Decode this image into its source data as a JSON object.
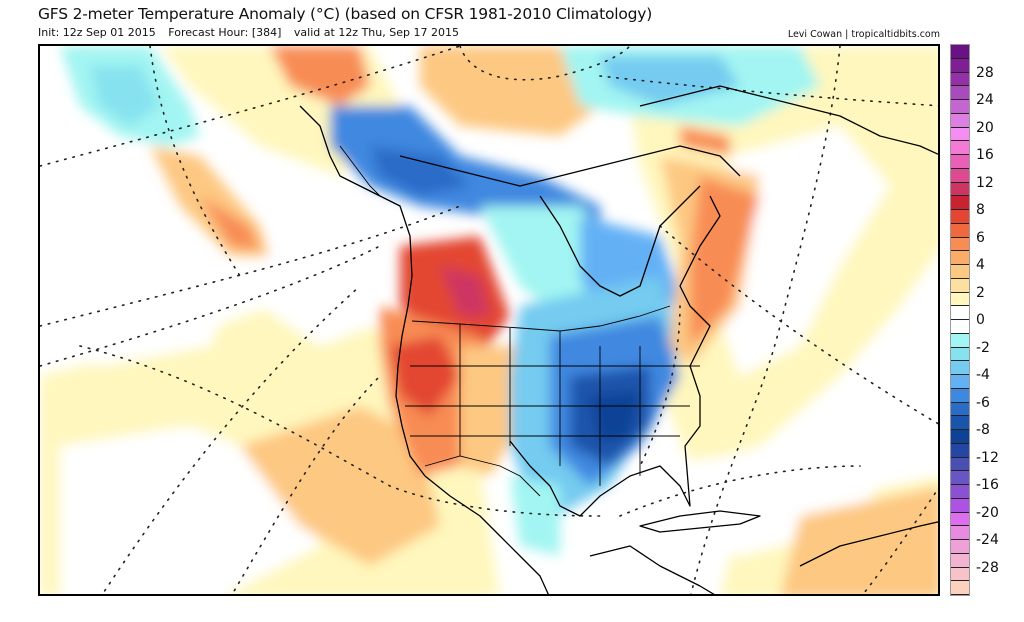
{
  "header": {
    "title": "GFS 2-meter Temperature Anomaly (°C) (based on CFSR 1981-2010 Climatology)",
    "init": "Init: 12z Sep 01 2015",
    "forecast_hour": "Forecast Hour: [384]",
    "valid": "valid at 12z Thu, Sep 17 2015",
    "credit": "Levi Cowan | tropicaltidbits.com"
  },
  "colorbar": {
    "unit": "°C",
    "labels": [
      "28",
      "24",
      "20",
      "16",
      "12",
      "8",
      "6",
      "4",
      "2",
      "0",
      "-2",
      "-4",
      "-6",
      "-8",
      "-12",
      "-16",
      "-20",
      "-24",
      "-28"
    ],
    "label_values": [
      28,
      24,
      20,
      16,
      12,
      8,
      6,
      4,
      2,
      0,
      -2,
      -4,
      -6,
      -8,
      -12,
      -16,
      -20,
      -24,
      -28
    ],
    "bounds": [
      32,
      30,
      28,
      26,
      24,
      22,
      20,
      18,
      16,
      14,
      12,
      10,
      8,
      7,
      6,
      5,
      4,
      3,
      2,
      1,
      0,
      -1,
      -2,
      -3,
      -4,
      -5,
      -6,
      -7,
      -8,
      -10,
      -12,
      -14,
      -16,
      -18,
      -20,
      -22,
      -24,
      -26,
      -28,
      -30,
      -32
    ],
    "colors": [
      "#6a1285",
      "#7f1f95",
      "#9630a8",
      "#a94bbd",
      "#c466cf",
      "#dd7fe0",
      "#f58ef2",
      "#f47ad8",
      "#ea5fb7",
      "#dc4a8f",
      "#cd3562",
      "#c92230",
      "#e34632",
      "#f0693e",
      "#f88c55",
      "#fbac68",
      "#fdc882",
      "#fde0a0",
      "#fff7bd",
      "#ffffff",
      "#ffffff",
      "#a2f5f2",
      "#86e2ef",
      "#74cbf0",
      "#63b0f5",
      "#3f88e0",
      "#2a6cc8",
      "#1b54ab",
      "#0d4296",
      "#2546a4",
      "#4a4fb4",
      "#6a55c4",
      "#8a52d2",
      "#ad52e2",
      "#dc6ef0",
      "#e88be0",
      "#efa0d6",
      "#f2b3d0",
      "#f8c2ca",
      "#fdd1bd"
    ]
  },
  "map": {
    "projection": "polar stereographic",
    "region": "North America",
    "anomaly_palette": {
      "very_warm": "#cd3562",
      "warm": "#e34632",
      "mild": "#f88c55",
      "slightly_warm": "#fdc882",
      "near_zero": "#fff7bd",
      "neutral": "#ffffff",
      "slightly_cool": "#a2f5f2",
      "cool": "#74cbf0",
      "cold": "#3f88e0",
      "very_cold": "#1b54ab"
    }
  }
}
